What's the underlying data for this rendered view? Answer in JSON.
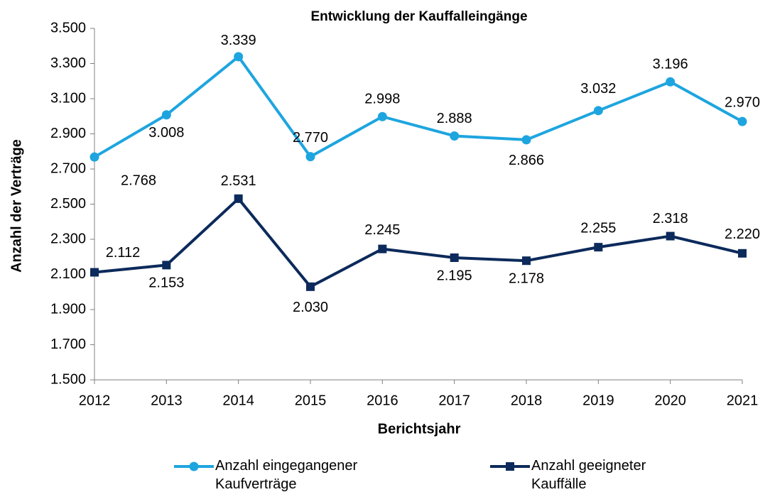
{
  "chart_data": {
    "type": "line",
    "title": "Entwicklung der Kauffalleingänge",
    "xlabel": "Berichtsjahr",
    "ylabel": "Anzahl der Verträge",
    "categories": [
      "2012",
      "2013",
      "2014",
      "2015",
      "2016",
      "2017",
      "2018",
      "2019",
      "2020",
      "2021"
    ],
    "series": [
      {
        "name": "Anzahl eingegangener Kaufverträge",
        "color": "#1ea5df",
        "marker": "circle",
        "values": [
          2768,
          3008,
          3339,
          2770,
          2998,
          2888,
          2866,
          3032,
          3196,
          2970
        ],
        "value_labels": [
          "2.768",
          "3.008",
          "3.339",
          "2.770",
          "2.998",
          "2.888",
          "2.866",
          "3.032",
          "3.196",
          "2.970"
        ]
      },
      {
        "name": "Anzahl geeigneter Kauffälle",
        "color": "#0c2a5b",
        "marker": "square",
        "values": [
          2112,
          2153,
          2531,
          2030,
          2245,
          2195,
          2178,
          2255,
          2318,
          2220
        ],
        "value_labels": [
          "2.112",
          "2.153",
          "2.531",
          "2.030",
          "2.245",
          "2.195",
          "2.178",
          "2.255",
          "2.318",
          "2.220"
        ]
      }
    ],
    "ylim": [
      1500,
      3500
    ],
    "yticks": [
      {
        "value": 1500,
        "label": "1.500"
      },
      {
        "value": 1700,
        "label": "1.700"
      },
      {
        "value": 1900,
        "label": "1.900"
      },
      {
        "value": 2100,
        "label": "2.100"
      },
      {
        "value": 2300,
        "label": "2.300"
      },
      {
        "value": 2500,
        "label": "2.500"
      },
      {
        "value": 2700,
        "label": "2.700"
      },
      {
        "value": 2900,
        "label": "2.900"
      },
      {
        "value": 3100,
        "label": "3.100"
      },
      {
        "value": 3300,
        "label": "3.300"
      },
      {
        "value": 3500,
        "label": "3.500"
      }
    ],
    "grid": false,
    "legend": "bottom"
  }
}
